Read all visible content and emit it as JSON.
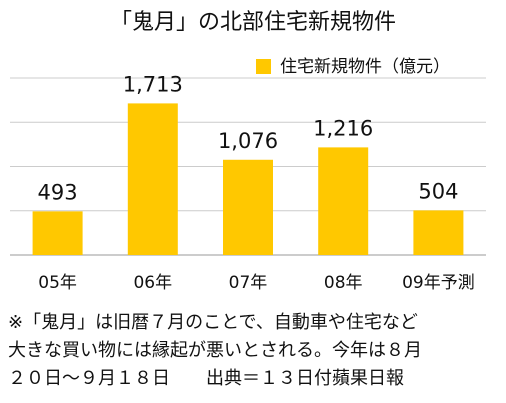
{
  "chart_data": {
    "type": "bar",
    "title": "「鬼月」の北部住宅新規物件",
    "legend": "住宅新規物件（億元）",
    "legend_position": "upper right",
    "categories": [
      "05年",
      "06年",
      "07年",
      "08年",
      "09年予測"
    ],
    "values": [
      493,
      1713,
      1076,
      1216,
      504
    ],
    "value_labels": [
      "493",
      "1,713",
      "1,076",
      "1,216",
      "504"
    ],
    "color": "#ffc800",
    "ylim": [
      0,
      2000
    ],
    "yticks": [
      0,
      500,
      1000,
      1500,
      2000
    ],
    "grid": true,
    "notes": [
      "※「鬼月」は旧暦７月のことで、自動車や住宅など",
      "大きな買い物には縁起が悪いとされる。今年は８月",
      "２０日～９月１８日　　出典＝１３日付蘋果日報"
    ]
  }
}
